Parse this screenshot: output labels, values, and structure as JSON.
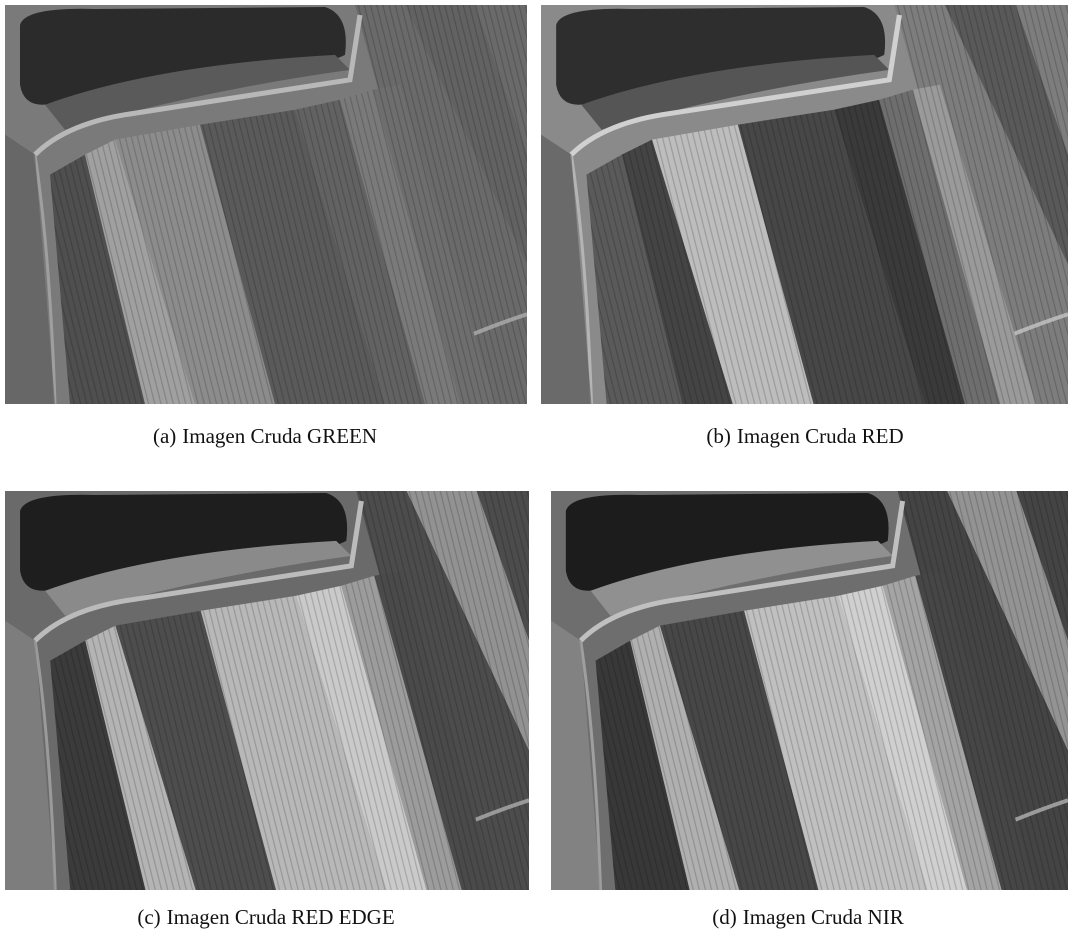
{
  "figure": {
    "subfigures": [
      {
        "label": "(a)",
        "caption": "Imagen Cruda GREEN"
      },
      {
        "label": "(b)",
        "caption": "Imagen Cruda RED"
      },
      {
        "label": "(c)",
        "caption": "Imagen Cruda RED EDGE"
      },
      {
        "label": "(d)",
        "caption": "Imagen Cruda NIR"
      }
    ]
  }
}
